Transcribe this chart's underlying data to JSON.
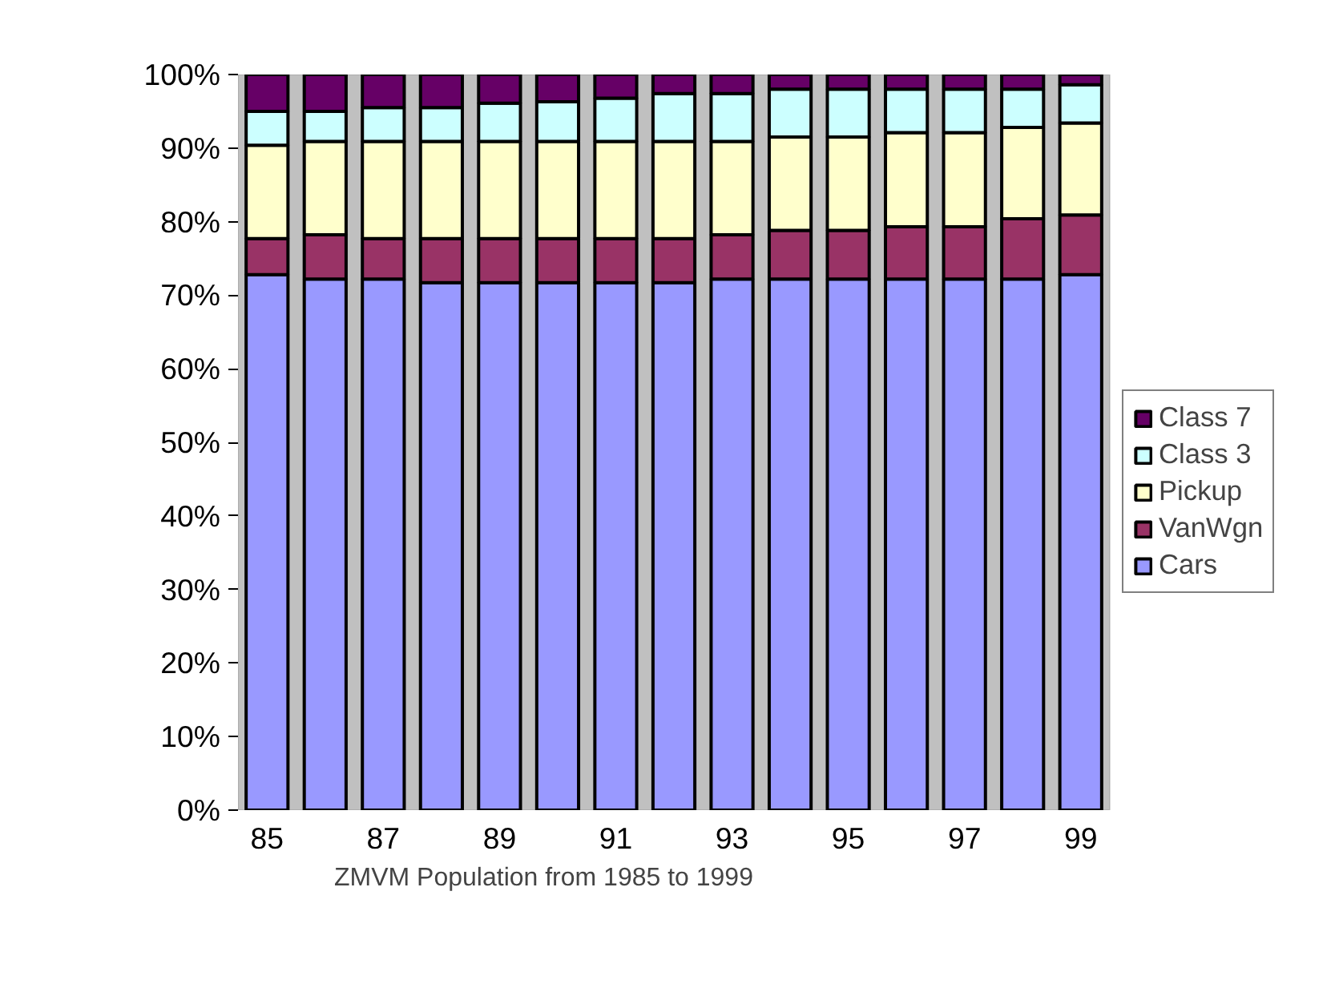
{
  "chart_data": {
    "type": "bar",
    "stacked": true,
    "title": "ZMVM Population from 1985 to 1999",
    "categories": [
      "85",
      null,
      "87",
      null,
      "89",
      null,
      "91",
      null,
      "93",
      null,
      "95",
      null,
      "97",
      null,
      "99"
    ],
    "series": [
      {
        "name": "Cars",
        "color": "#9999ff",
        "values": [
          72.8,
          72.2,
          72.2,
          71.7,
          71.7,
          71.7,
          71.7,
          71.7,
          72.2,
          72.2,
          72.2,
          72.2,
          72.2,
          72.2,
          72.8
        ]
      },
      {
        "name": "VanWgn",
        "color": "#993366",
        "values": [
          4.9,
          6.0,
          5.5,
          6.0,
          6.0,
          6.0,
          6.0,
          6.0,
          6.0,
          6.6,
          6.6,
          7.1,
          7.1,
          8.2,
          8.1
        ]
      },
      {
        "name": "Pickup",
        "color": "#ffffcc",
        "values": [
          12.7,
          12.7,
          13.2,
          13.2,
          13.2,
          13.2,
          13.2,
          13.2,
          12.7,
          12.7,
          12.7,
          12.8,
          12.8,
          12.4,
          12.5
        ]
      },
      {
        "name": "Class 3",
        "color": "#ccffff",
        "values": [
          4.6,
          4.1,
          4.6,
          4.6,
          5.2,
          5.4,
          5.9,
          6.5,
          6.5,
          6.5,
          6.5,
          5.9,
          5.9,
          5.2,
          5.2
        ]
      },
      {
        "name": "Class 7",
        "color": "#660066",
        "values": [
          5.0,
          5.0,
          4.5,
          4.5,
          3.9,
          3.7,
          3.2,
          2.6,
          2.6,
          2.0,
          2.0,
          2.0,
          2.0,
          2.0,
          1.4
        ]
      }
    ],
    "ylim": [
      0,
      100
    ],
    "yticks": [
      {
        "value": 0,
        "label": "0%"
      },
      {
        "value": 10,
        "label": "10%"
      },
      {
        "value": 20,
        "label": "20%"
      },
      {
        "value": 30,
        "label": "30%"
      },
      {
        "value": 40,
        "label": "40%"
      },
      {
        "value": 50,
        "label": "50%"
      },
      {
        "value": 60,
        "label": "60%"
      },
      {
        "value": 70,
        "label": "70%"
      },
      {
        "value": 80,
        "label": "80%"
      },
      {
        "value": 90,
        "label": "90%"
      },
      {
        "value": 100,
        "label": "100%"
      }
    ],
    "grid": false,
    "legend": "right"
  }
}
